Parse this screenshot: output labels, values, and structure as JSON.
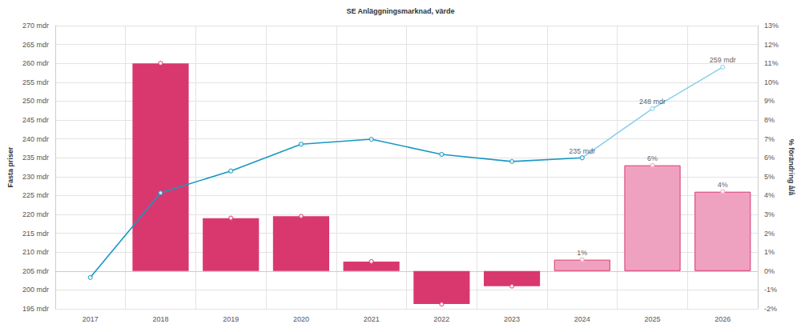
{
  "chart_data": {
    "type": "bar",
    "title": "SE Anläggningsmarknad, värde",
    "y_label": "Fasta priser",
    "y2_label": "% förändring å/å",
    "categories": [
      "2017",
      "2018",
      "2019",
      "2020",
      "2021",
      "2022",
      "2023",
      "2024",
      "2025",
      "2026"
    ],
    "series": [
      {
        "type": "line",
        "marker": "circle",
        "values": [
          203.3,
          225.7,
          231.5,
          238.6,
          239.9,
          235.9,
          234,
          235,
          248,
          259
        ],
        "value_labels": [
          null,
          null,
          null,
          null,
          null,
          null,
          null,
          "235 mdr",
          "248 mdr",
          "259 mdr"
        ],
        "colors": [
          "#1798c4",
          "#1798c4",
          "#1798c4",
          "#1798c4",
          "#1798c4",
          "#1798c4",
          "#1798c4",
          "#1798c4",
          "#8ccfec",
          "#8ccfec"
        ]
      },
      {
        "type": "bar",
        "axis": "y2",
        "marker": "circle",
        "values": [
          null,
          11,
          2.8,
          2.9,
          0.5,
          -1.75,
          -0.8,
          0.6,
          5.6,
          4.2
        ],
        "value_labels": [
          null,
          null,
          null,
          null,
          null,
          null,
          null,
          "1%",
          "6%",
          "4%"
        ],
        "colors": [
          "#d9386f",
          "#d9386f",
          "#d9386f",
          "#d9386f",
          "#d9386f",
          "#d9386f",
          "#d9386f",
          "#efa2bf",
          "#efa2bf",
          "#efa2bf"
        ]
      }
    ],
    "ylim": [
      195,
      270
    ],
    "yticks": [
      {
        "value": 195,
        "label": "195 mdr"
      },
      {
        "value": 200,
        "label": "200 mdr"
      },
      {
        "value": 205,
        "label": "205 mdr"
      },
      {
        "value": 210,
        "label": "210 mdr"
      },
      {
        "value": 215,
        "label": "215 mdr"
      },
      {
        "value": 220,
        "label": "220 mdr"
      },
      {
        "value": 225,
        "label": "225 mdr"
      },
      {
        "value": 230,
        "label": "230 mdr"
      },
      {
        "value": 235,
        "label": "235 mdr"
      },
      {
        "value": 240,
        "label": "240 mdr"
      },
      {
        "value": 245,
        "label": "245 mdr"
      },
      {
        "value": 250,
        "label": "250 mdr"
      },
      {
        "value": 255,
        "label": "255 mdr"
      },
      {
        "value": 260,
        "label": "260 mdr"
      },
      {
        "value": 265,
        "label": "265 mdr"
      },
      {
        "value": 270,
        "label": "270 mdr"
      }
    ],
    "y2lim": [
      -2,
      13
    ],
    "y2ticks": [
      {
        "value": -2,
        "label": "-2%"
      },
      {
        "value": -1,
        "label": "-1%"
      },
      {
        "value": 0,
        "label": "0%"
      },
      {
        "value": 1,
        "label": "1%"
      },
      {
        "value": 2,
        "label": "2%"
      },
      {
        "value": 3,
        "label": "3%"
      },
      {
        "value": 4,
        "label": "4%"
      },
      {
        "value": 5,
        "label": "5%"
      },
      {
        "value": 6,
        "label": "6%"
      },
      {
        "value": 7,
        "label": "7%"
      },
      {
        "value": 8,
        "label": "8%"
      },
      {
        "value": 9,
        "label": "9%"
      },
      {
        "value": 10,
        "label": "10%"
      },
      {
        "value": 11,
        "label": "11%"
      },
      {
        "value": 12,
        "label": "12%"
      },
      {
        "value": 13,
        "label": "13%"
      }
    ],
    "grid": true,
    "data_labels": true
  }
}
